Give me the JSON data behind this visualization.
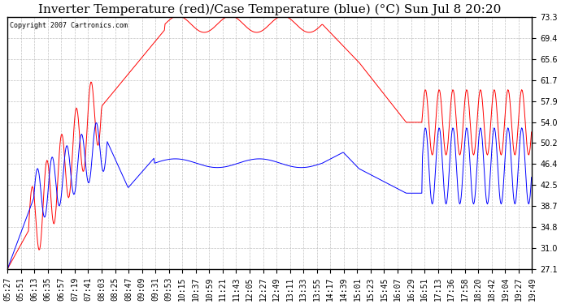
{
  "title": "Inverter Temperature (red)/Case Temperature (blue) (°C) Sun Jul 8 20:20",
  "copyright": "Copyright 2007 Cartronics.com",
  "ylim": [
    27.1,
    73.3
  ],
  "yticks": [
    27.1,
    31.0,
    34.8,
    38.7,
    42.5,
    46.4,
    50.2,
    54.0,
    57.9,
    61.7,
    65.6,
    69.4,
    73.3
  ],
  "bg_color": "#FFFFFF",
  "plot_bg_color": "#FFFFFF",
  "grid_color": "#BBBBBB",
  "red_color": "#FF0000",
  "blue_color": "#0000FF",
  "title_fontsize": 11,
  "tick_fontsize": 7,
  "x_labels": [
    "05:27",
    "05:51",
    "06:13",
    "06:35",
    "06:57",
    "07:19",
    "07:41",
    "08:03",
    "08:25",
    "08:47",
    "09:09",
    "09:31",
    "09:53",
    "10:15",
    "10:37",
    "10:59",
    "11:21",
    "11:43",
    "12:05",
    "12:27",
    "12:49",
    "13:11",
    "13:33",
    "13:55",
    "14:17",
    "14:39",
    "15:01",
    "15:23",
    "15:45",
    "16:07",
    "16:29",
    "16:51",
    "17:13",
    "17:36",
    "17:58",
    "18:20",
    "18:42",
    "19:04",
    "19:27",
    "19:49"
  ]
}
